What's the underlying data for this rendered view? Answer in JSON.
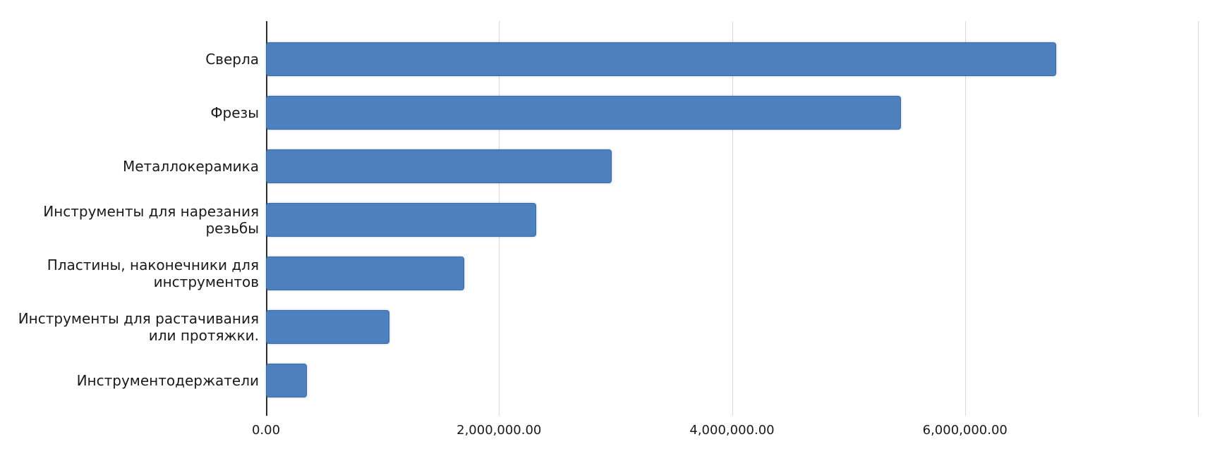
{
  "chart_data": {
    "type": "bar",
    "orientation": "horizontal",
    "title": "",
    "categories": [
      "Сверла",
      "Фрезы",
      "Металлокерамика",
      "Инструменты для нарезания\nрезьбы",
      "Пластины, наконечники для\nинструментов",
      "Инструменты для растачивания\nили протяжки.",
      "Инструментодержатели"
    ],
    "values": [
      6780000,
      5450000,
      2970000,
      2320000,
      1700000,
      1060000,
      350000
    ],
    "xlabel": "",
    "ylabel": "",
    "xlim": [
      0,
      8000000
    ],
    "grid": true,
    "legend": false,
    "x_ticks": [
      {
        "value": 0,
        "label": "0.00"
      },
      {
        "value": 2000000,
        "label": "2,000,000.00"
      },
      {
        "value": 4000000,
        "label": "4,000,000.00"
      },
      {
        "value": 6000000,
        "label": "6,000,000.00"
      },
      {
        "value": 8000000,
        "label": ""
      }
    ],
    "colors": {
      "bar_fill": "#4e80bd",
      "bar_border": "#3d6aa3",
      "gridline": "#d9d9d9",
      "axis_line": "#2c2c2c",
      "text": "#1a1a1a",
      "background": "#ffffff"
    }
  }
}
